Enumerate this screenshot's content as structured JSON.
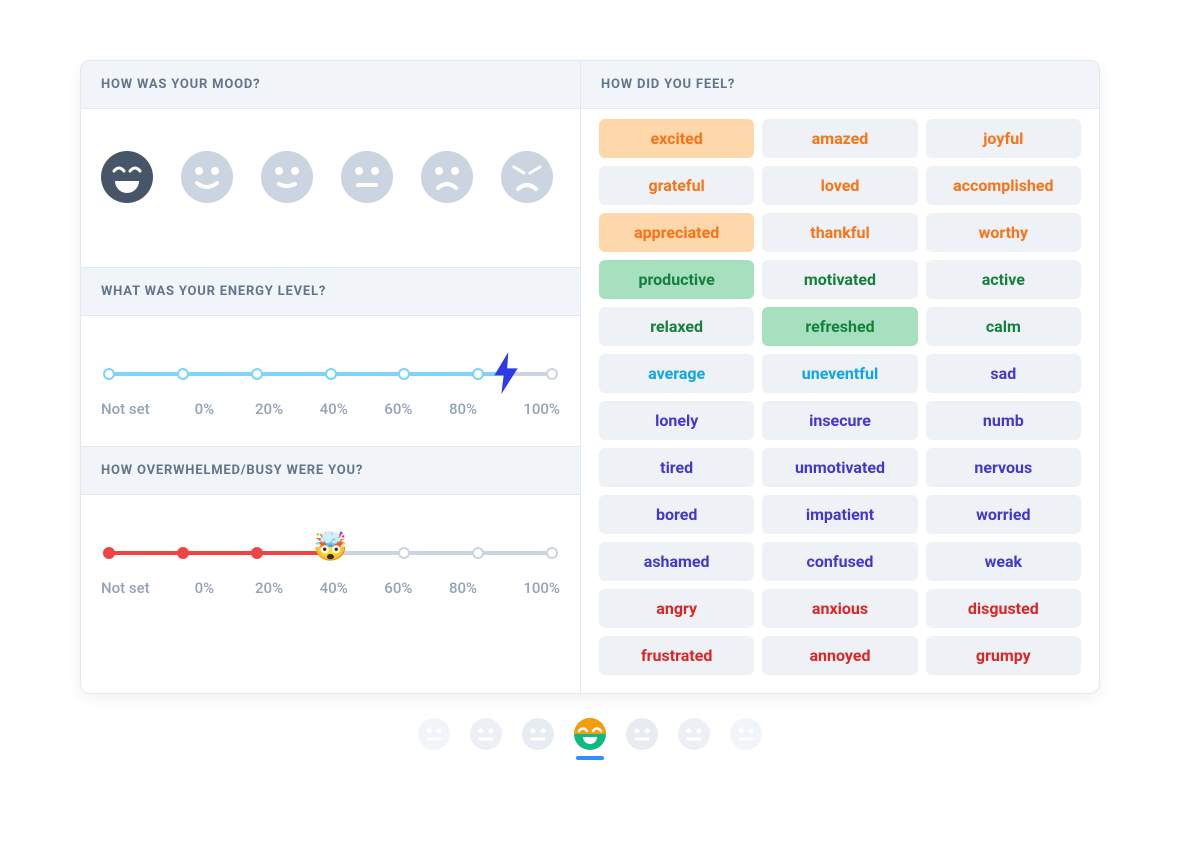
{
  "colors": {
    "header_bg": "#f1f5f9",
    "header_text": "#64748b",
    "border": "#e2e8f0",
    "rail": "#cbd5e1",
    "label_muted": "#94a3b8",
    "nav_active_underline": "#2e90fa"
  },
  "mood": {
    "title": "HOW WAS YOUR MOOD?",
    "faces": [
      {
        "name": "face-beaming",
        "selected": true,
        "fill": "#475569"
      },
      {
        "name": "face-smile",
        "selected": false,
        "fill": "#cbd5e1"
      },
      {
        "name": "face-slight-smile",
        "selected": false,
        "fill": "#cbd5e1"
      },
      {
        "name": "face-neutral",
        "selected": false,
        "fill": "#cbd5e1"
      },
      {
        "name": "face-frown",
        "selected": false,
        "fill": "#cbd5e1"
      },
      {
        "name": "face-angry",
        "selected": false,
        "fill": "#cbd5e1"
      }
    ]
  },
  "energy": {
    "title": "WHAT WAS YOUR ENERGY LEVEL?",
    "color": "#7dd3fc",
    "bolt_color": "#2e3ae6",
    "labels": [
      "Not set",
      "0%",
      "20%",
      "40%",
      "60%",
      "80%",
      "100%"
    ],
    "value_index": 5,
    "handle_between": true
  },
  "overwhelm": {
    "title": "HOW OVERWHELMED/BUSY WERE YOU?",
    "color": "#ef4444",
    "labels": [
      "Not set",
      "0%",
      "20%",
      "40%",
      "60%",
      "80%",
      "100%"
    ],
    "value_index": 3,
    "handle_emoji": "🤯"
  },
  "feelings": {
    "title": "HOW DID YOU FEEL?",
    "palette": {
      "orange": {
        "fg": "#f97316",
        "bg": "#eef2f6",
        "bg_sel": "#fed7aa"
      },
      "green": {
        "fg": "#15803d",
        "bg": "#eef2f6",
        "bg_sel": "#a7e0bf"
      },
      "blue": {
        "fg": "#0ea5e9",
        "bg": "#eef2f6",
        "bg_sel": "#bae6fd"
      },
      "indigo": {
        "fg": "#4338ca",
        "bg": "#eef2f6",
        "bg_sel": "#c7d2fe"
      },
      "red": {
        "fg": "#dc2626",
        "bg": "#eef2f6",
        "bg_sel": "#fecaca"
      }
    },
    "chips": [
      {
        "label": "excited",
        "group": "orange",
        "selected": true
      },
      {
        "label": "amazed",
        "group": "orange",
        "selected": false
      },
      {
        "label": "joyful",
        "group": "orange",
        "selected": false
      },
      {
        "label": "grateful",
        "group": "orange",
        "selected": false
      },
      {
        "label": "loved",
        "group": "orange",
        "selected": false
      },
      {
        "label": "accomplished",
        "group": "orange",
        "selected": false
      },
      {
        "label": "appreciated",
        "group": "orange",
        "selected": true
      },
      {
        "label": "thankful",
        "group": "orange",
        "selected": false
      },
      {
        "label": "worthy",
        "group": "orange",
        "selected": false
      },
      {
        "label": "productive",
        "group": "green",
        "selected": true
      },
      {
        "label": "motivated",
        "group": "green",
        "selected": false
      },
      {
        "label": "active",
        "group": "green",
        "selected": false
      },
      {
        "label": "relaxed",
        "group": "green",
        "selected": false
      },
      {
        "label": "refreshed",
        "group": "green",
        "selected": true
      },
      {
        "label": "calm",
        "group": "green",
        "selected": false
      },
      {
        "label": "average",
        "group": "blue",
        "selected": false
      },
      {
        "label": "uneventful",
        "group": "blue",
        "selected": false
      },
      {
        "label": "sad",
        "group": "indigo",
        "selected": false
      },
      {
        "label": "lonely",
        "group": "indigo",
        "selected": false
      },
      {
        "label": "insecure",
        "group": "indigo",
        "selected": false
      },
      {
        "label": "numb",
        "group": "indigo",
        "selected": false
      },
      {
        "label": "tired",
        "group": "indigo",
        "selected": false
      },
      {
        "label": "unmotivated",
        "group": "indigo",
        "selected": false
      },
      {
        "label": "nervous",
        "group": "indigo",
        "selected": false
      },
      {
        "label": "bored",
        "group": "indigo",
        "selected": false
      },
      {
        "label": "impatient",
        "group": "indigo",
        "selected": false
      },
      {
        "label": "worried",
        "group": "indigo",
        "selected": false
      },
      {
        "label": "ashamed",
        "group": "indigo",
        "selected": false
      },
      {
        "label": "confused",
        "group": "indigo",
        "selected": false
      },
      {
        "label": "weak",
        "group": "indigo",
        "selected": false
      },
      {
        "label": "angry",
        "group": "red",
        "selected": false
      },
      {
        "label": "anxious",
        "group": "red",
        "selected": false
      },
      {
        "label": "disgusted",
        "group": "red",
        "selected": false
      },
      {
        "label": "frustrated",
        "group": "red",
        "selected": false
      },
      {
        "label": "annoyed",
        "group": "red",
        "selected": false
      },
      {
        "label": "grumpy",
        "group": "red",
        "selected": false
      }
    ]
  },
  "nav": {
    "items": 7,
    "active_index": 3,
    "inactive_fill": "#e2e8f0",
    "active_primary": "#f59e0b",
    "active_secondary": "#10b981"
  }
}
